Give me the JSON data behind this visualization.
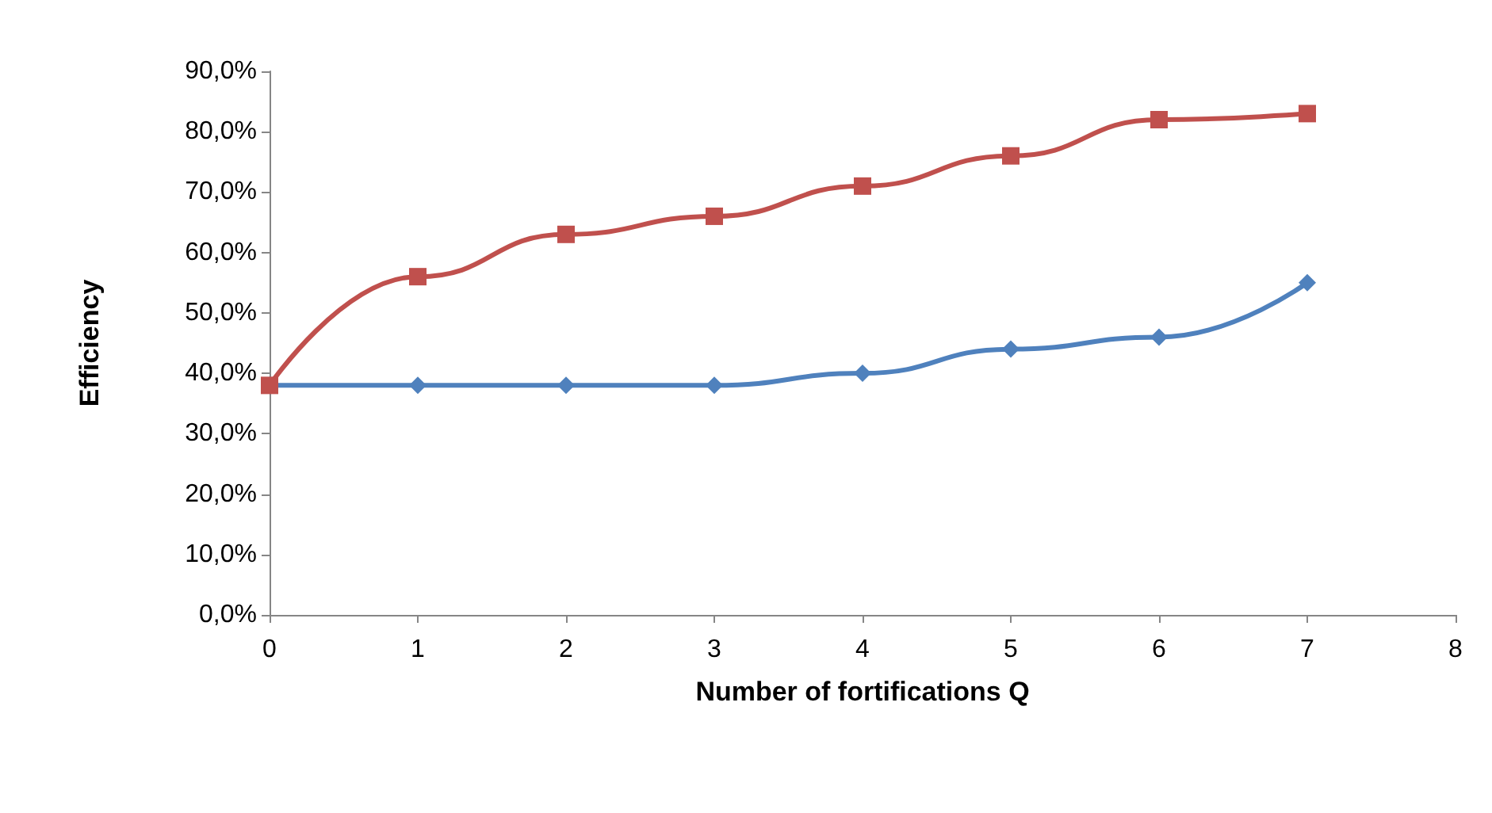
{
  "chart_data": {
    "type": "line",
    "xlabel": "Number of fortifications Q",
    "ylabel": "Efficiency",
    "x": [
      0,
      1,
      2,
      3,
      4,
      5,
      6,
      7
    ],
    "series": [
      {
        "color": "#4f81bd",
        "marker": "diamond",
        "values": [
          38,
          38,
          38,
          38,
          40,
          44,
          46,
          55
        ]
      },
      {
        "color": "#c0504d",
        "marker": "square",
        "values": [
          38,
          56,
          63,
          66,
          71,
          76,
          82,
          83
        ]
      }
    ],
    "xlim": [
      0,
      8
    ],
    "xticks": [
      0,
      1,
      2,
      3,
      4,
      5,
      6,
      7,
      8
    ],
    "ylim": [
      0,
      90
    ],
    "yticks": [
      {
        "value": 0,
        "label": "0,0%"
      },
      {
        "value": 10,
        "label": "10,0%"
      },
      {
        "value": 20,
        "label": "20,0%"
      },
      {
        "value": 30,
        "label": "30,0%"
      },
      {
        "value": 40,
        "label": "40,0%"
      },
      {
        "value": 50,
        "label": "50,0%"
      },
      {
        "value": 60,
        "label": "60,0%"
      },
      {
        "value": 70,
        "label": "70,0%"
      },
      {
        "value": 80,
        "label": "80,0%"
      },
      {
        "value": 90,
        "label": "90,0%"
      }
    ],
    "grid": false
  }
}
